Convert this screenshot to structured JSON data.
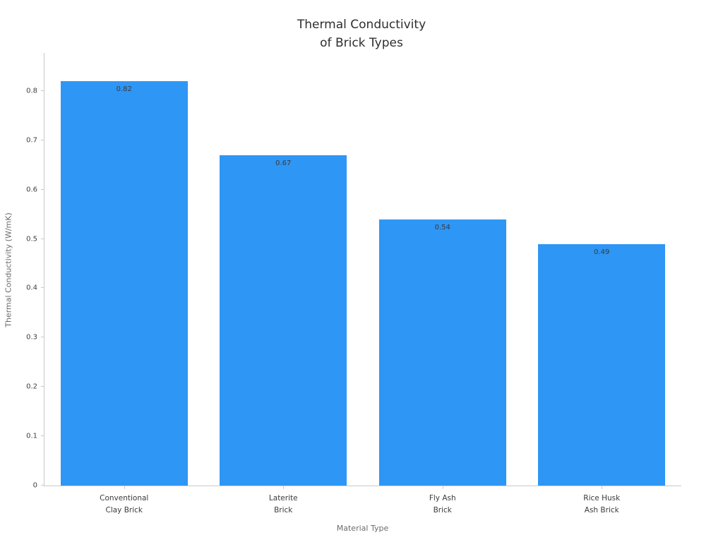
{
  "chart_data": {
    "type": "bar",
    "title": "Thermal Conductivity\nof Brick Types",
    "categories": [
      "Conventional\nClay Brick",
      "Laterite\nBrick",
      "Fly Ash\nBrick",
      "Rice Husk\nAsh Brick"
    ],
    "values": [
      0.82,
      0.67,
      0.54,
      0.49
    ],
    "value_labels": [
      "0.82",
      "0.67",
      "0.54",
      "0.49"
    ],
    "xlabel": "Material Type",
    "ylabel": "Thermal Conductivity (W/mK)",
    "ylim": [
      0,
      0.877
    ],
    "yticks": [
      0,
      0.1,
      0.2,
      0.3,
      0.4,
      0.5,
      0.6,
      0.7,
      0.8
    ],
    "ytick_labels": [
      "0",
      "0.1",
      "0.2",
      "0.3",
      "0.4",
      "0.5",
      "0.6",
      "0.7",
      "0.8"
    ],
    "bar_color": "#2E96F5",
    "grid": false,
    "legend": null,
    "background": "#ffffff"
  }
}
